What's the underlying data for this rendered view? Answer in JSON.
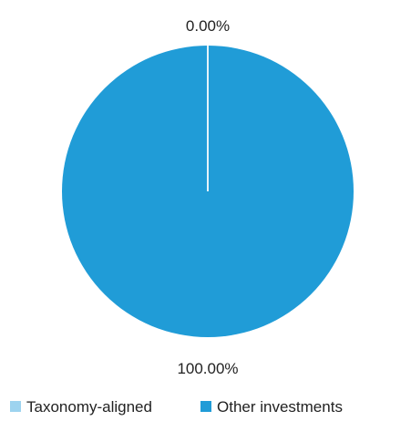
{
  "chart_data": {
    "type": "pie",
    "categories": [
      "Taxonomy-aligned",
      "Other investments"
    ],
    "values": [
      0.0,
      100.0
    ],
    "value_labels": [
      "0.00%",
      "100.00%"
    ],
    "colors": [
      "#9dd3ef",
      "#209cd7"
    ],
    "legend_position": "bottom"
  }
}
